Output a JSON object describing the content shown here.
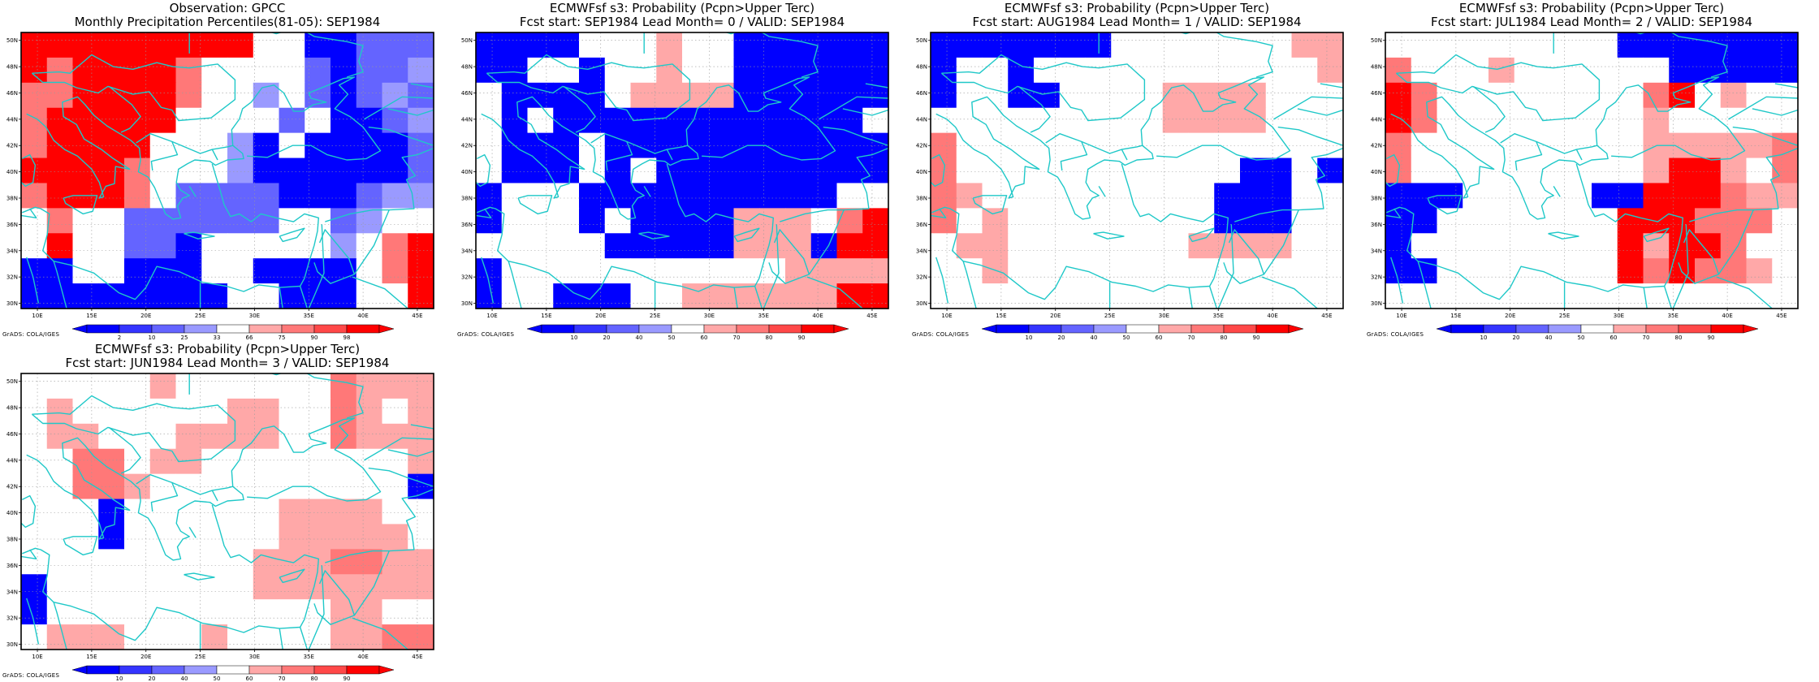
{
  "colors": {
    "coast": "#1fc8c8",
    "blue_scale": [
      "#0000ff",
      "#3434ff",
      "#6464ff",
      "#9a9aff"
    ],
    "white": "#ffffff",
    "red_scale": [
      "#ffa8a8",
      "#ff7878",
      "#ff4848",
      "#ff0000"
    ]
  },
  "axes": {
    "lat_labels": [
      "30N",
      "32N",
      "34N",
      "36N",
      "38N",
      "40N",
      "42N",
      "44N",
      "46N",
      "48N",
      "50N"
    ],
    "lon_labels": [
      "10E",
      "15E",
      "20E",
      "25E",
      "30E",
      "35E",
      "40E",
      "45E"
    ]
  },
  "footer_text": "GrADS: COLA/IGES",
  "panels": [
    {
      "title_line1": "Observation: GPCC",
      "title_line2": "Monthly Precipitation Percentiles(81-05): SEP1984",
      "colorbar_labels": [
        "2",
        "10",
        "25",
        "33",
        "66",
        "75",
        "90",
        "98"
      ],
      "grid": [
        "RRRRRRRRRWWBBbbb",
        "RrRRRRrWWWWbBbbc",
        "rrRRRRrWWcWbBbcb",
        "rRRRRRWWWWbWBBbc",
        "rRRRRWWWcBWBBBBb",
        "RRRRrWWWcBBBBBBb",
        "rRRRrWbbbbBBBbcc",
        "WrWWbbbbbbWWbcWW",
        "WRWWbbBWWWWWcWrR",
        "BBWWBBBWWBBBBWrR",
        "BBBBBBBBWWBBBWWR"
      ]
    },
    {
      "title_line1": "ECMWFsf s3: Probability (Pcpn>Upper Terc)",
      "title_line2": "Fcst start: SEP1984  Lead Month= 0 / VALID: SEP1984",
      "colorbar_labels": [
        "10",
        "20",
        "40",
        "50",
        "60",
        "70",
        "80",
        "90"
      ],
      "grid": [
        "BBBBWWWpWWBBBBBB",
        "BBWWBWWpWWBBBBBB",
        "WBBBBWppppBBBBBB",
        "WBWBBBBBBBBBBBBW",
        "WBBBWBBBBBBBBBBB",
        "WBBBWBWBBBBBBBBB",
        "BWWWBBBBBBBBBBWW",
        "BWWWBWBBBBpppWrR",
        "WWWWWBBBBBpppBRR",
        "BWWWWWWWWWWWpppp",
        "BWWBBBWWppppppRR"
      ]
    },
    {
      "title_line1": "ECMWFsf s3: Probability (Pcpn>Upper Terc)",
      "title_line2": "Fcst start: AUG1984  Lead Month= 1 / VALID: SEP1984",
      "colorbar_labels": [
        "10",
        "20",
        "40",
        "50",
        "60",
        "70",
        "80",
        "90"
      ],
      "grid": [
        "BBBBBBBWWWWWWWpp",
        "BWWBWWWWWWWWWWWp",
        "BWWBBWWWWppppWWW",
        "WWWWWWWWWppppWWW",
        "rWWWWWWWWWWWWWWW",
        "rWWWWWWWWWWWBBWB",
        "rpWWWWWWWWWBBBWW",
        "rWpWWWWWWWWBBBWW",
        "WppWWWWWWWppppWW",
        "WWpWWWWWWWWWWWWW",
        "WWWWWWWWWWWWWWWW"
      ]
    },
    {
      "title_line1": "ECMWFsf s3: Probability (Pcpn>Upper Terc)",
      "title_line2": "Fcst start: JUL1984  Lead Month= 2 / VALID: SEP1984",
      "colorbar_labels": [
        "10",
        "20",
        "40",
        "50",
        "60",
        "70",
        "80",
        "90"
      ],
      "grid": [
        "WWWWWWWWWBBBBBBB",
        "rWWWpWWWWWWBBBBB",
        "RrWWWWWWWWrRWpWW",
        "RrWWWWWWWWpWWWWW",
        "rWWWWWWWWWpppppr",
        "rWWWWWWWWWpRRpWr",
        "BBBWWWWWBBRRRrpp",
        "BBWWWWWWWRRRrrrW",
        "BWWWWWWWWRpRRrWW",
        "BBWWWWWWWRrRrrpW",
        "WWWWWWWWWWWWWWWW"
      ]
    },
    {
      "title_line1": "ECMWFsf s3: Probability (Pcpn>Upper Terc)",
      "title_line2": "Fcst start: JUN1984  Lead Month= 3 / VALID: SEP1984",
      "colorbar_labels": [
        "10",
        "20",
        "40",
        "50",
        "60",
        "70",
        "80",
        "90"
      ],
      "grid": [
        "WWWWWpWWWWWWrppp",
        "WpWWWWWWppWWrpWp",
        "WppWWWppppWWrppp",
        "WWrrWppWWWWWWWWp",
        "WWrrpWWWWWWWWWWB",
        "WWWBWWWWWWppppWW",
        "WWWBWWWWWWpppppW",
        "WWWWWWWWWppprrpp",
        "BWWWWWWWWppppppp",
        "BWWWWWWWWWWWppWW",
        "WpppWWWpWWWWpprr"
      ]
    }
  ]
}
